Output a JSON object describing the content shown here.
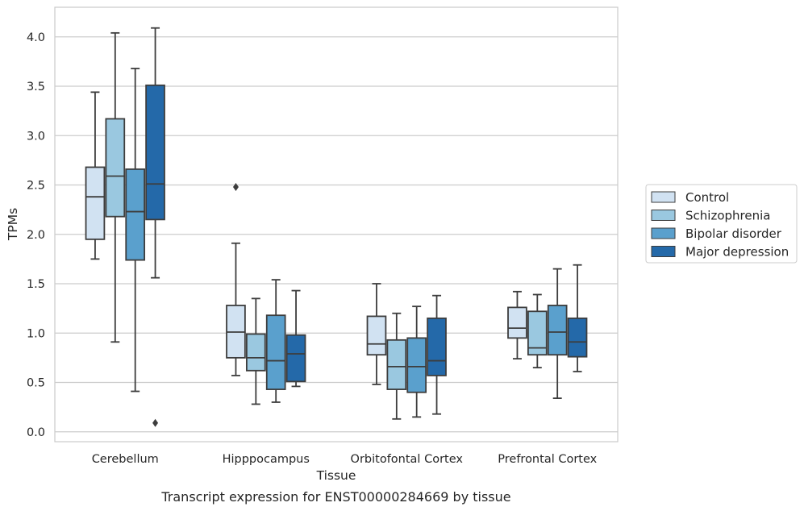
{
  "chart_data": {
    "type": "box",
    "xlabel": "Tissue",
    "ylabel": "TPMs",
    "caption": "Transcript expression for ENST00000284669 by tissue",
    "ylim": [
      -0.1,
      4.3
    ],
    "yticks": [
      0.0,
      0.5,
      1.0,
      1.5,
      2.0,
      2.5,
      3.0,
      3.5,
      4.0
    ],
    "ytick_labels": [
      "0.0",
      "0.5",
      "1.0",
      "1.5",
      "2.0",
      "2.5",
      "3.0",
      "3.5",
      "4.0"
    ],
    "grid": "horizontal",
    "legend_position": "right",
    "categories": [
      "Cerebellum",
      "Hipppocampus",
      "Orbitofontal Cortex",
      "Prefrontal Cortex"
    ],
    "series": [
      {
        "name": "Control",
        "color": "#d1e2f2",
        "boxes": [
          {
            "whisker_low": 1.75,
            "q1": 1.95,
            "median": 2.38,
            "q3": 2.68,
            "whisker_high": 3.44,
            "outliers": []
          },
          {
            "whisker_low": 0.57,
            "q1": 0.75,
            "median": 1.01,
            "q3": 1.28,
            "whisker_high": 1.91,
            "outliers": [
              2.48
            ]
          },
          {
            "whisker_low": 0.48,
            "q1": 0.78,
            "median": 0.89,
            "q3": 1.17,
            "whisker_high": 1.5,
            "outliers": []
          },
          {
            "whisker_low": 0.74,
            "q1": 0.95,
            "median": 1.05,
            "q3": 1.26,
            "whisker_high": 1.42,
            "outliers": []
          }
        ]
      },
      {
        "name": "Schizophrenia",
        "color": "#9ac8e0",
        "boxes": [
          {
            "whisker_low": 0.91,
            "q1": 2.18,
            "median": 2.59,
            "q3": 3.17,
            "whisker_high": 4.04,
            "outliers": []
          },
          {
            "whisker_low": 0.28,
            "q1": 0.62,
            "median": 0.75,
            "q3": 0.99,
            "whisker_high": 1.35,
            "outliers": []
          },
          {
            "whisker_low": 0.13,
            "q1": 0.43,
            "median": 0.66,
            "q3": 0.93,
            "whisker_high": 1.2,
            "outliers": []
          },
          {
            "whisker_low": 0.65,
            "q1": 0.78,
            "median": 0.85,
            "q3": 1.22,
            "whisker_high": 1.39,
            "outliers": []
          }
        ]
      },
      {
        "name": "Bipolar disorder",
        "color": "#5aa0cd",
        "boxes": [
          {
            "whisker_low": 0.41,
            "q1": 1.74,
            "median": 2.23,
            "q3": 2.66,
            "whisker_high": 3.68,
            "outliers": []
          },
          {
            "whisker_low": 0.3,
            "q1": 0.43,
            "median": 0.72,
            "q3": 1.18,
            "whisker_high": 1.54,
            "outliers": []
          },
          {
            "whisker_low": 0.15,
            "q1": 0.4,
            "median": 0.66,
            "q3": 0.95,
            "whisker_high": 1.27,
            "outliers": []
          },
          {
            "whisker_low": 0.34,
            "q1": 0.78,
            "median": 1.01,
            "q3": 1.28,
            "whisker_high": 1.65,
            "outliers": []
          }
        ]
      },
      {
        "name": "Major depression",
        "color": "#2469a9",
        "boxes": [
          {
            "whisker_low": 1.56,
            "q1": 2.15,
            "median": 2.51,
            "q3": 3.51,
            "whisker_high": 4.09,
            "outliers": [
              0.09
            ]
          },
          {
            "whisker_low": 0.46,
            "q1": 0.51,
            "median": 0.79,
            "q3": 0.98,
            "whisker_high": 1.43,
            "outliers": []
          },
          {
            "whisker_low": 0.18,
            "q1": 0.57,
            "median": 0.72,
            "q3": 1.15,
            "whisker_high": 1.38,
            "outliers": []
          },
          {
            "whisker_low": 0.61,
            "q1": 0.76,
            "median": 0.91,
            "q3": 1.15,
            "whisker_high": 1.69,
            "outliers": []
          }
        ]
      }
    ]
  }
}
